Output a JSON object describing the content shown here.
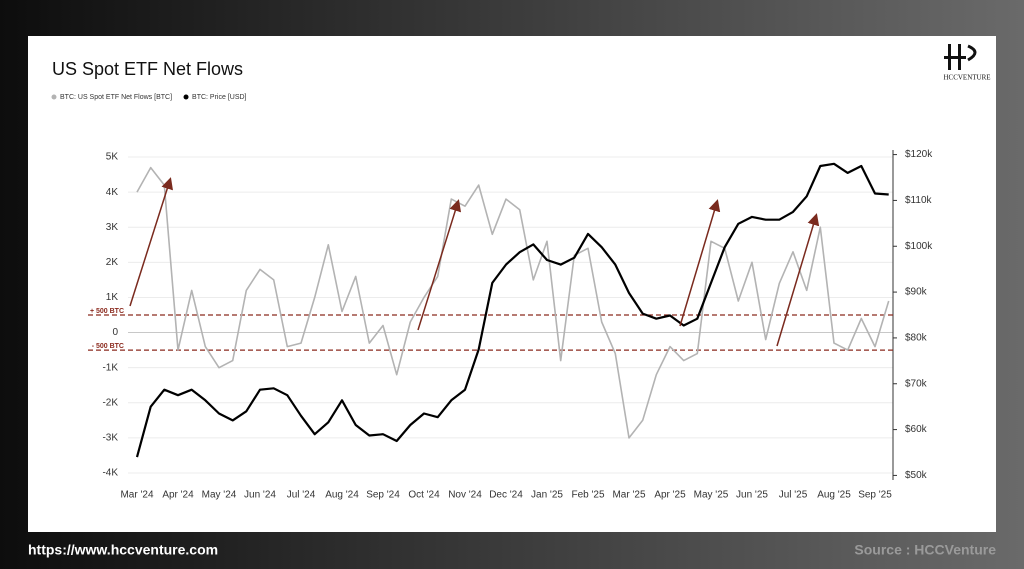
{
  "chart_data": {
    "type": "line",
    "title": "US Spot ETF Net Flows",
    "logo": "HCCVENTURE",
    "footer_left": "https://www.hccventure.com",
    "footer_right": "Source : HCCVenture",
    "categories": [
      "Mar '24",
      null,
      null,
      "Apr '24",
      null,
      null,
      "May '24",
      null,
      null,
      "Jun '24",
      null,
      null,
      "Jul '24",
      null,
      null,
      "Aug '24",
      null,
      null,
      "Sep '24",
      null,
      null,
      "Oct '24",
      null,
      null,
      "Nov '24",
      null,
      null,
      "Dec '24",
      null,
      null,
      "Jan '25",
      null,
      null,
      "Feb '25",
      null,
      null,
      "Mar '25",
      null,
      null,
      "Apr '25",
      null,
      null,
      "May '25",
      null,
      null,
      "Jun '25",
      null,
      null,
      "Jul '25",
      null,
      null,
      "Aug '25",
      null,
      null,
      "Sep '25",
      null
    ],
    "series": [
      {
        "name": "BTC: US Spot ETF Net Flows [BTC]",
        "color": "#b3b3b3",
        "axis": "y",
        "values": [
          4000,
          4700,
          4200,
          -500,
          1200,
          -400,
          -1000,
          -800,
          1200,
          1800,
          1500,
          -400,
          -300,
          1000,
          2500,
          600,
          1600,
          -300,
          200,
          -1200,
          300,
          1000,
          1600,
          3800,
          3600,
          4200,
          2800,
          3800,
          3500,
          1500,
          2600,
          -800,
          2200,
          2400,
          300,
          -600,
          -3000,
          -2500,
          -1200,
          -400,
          -800,
          -600,
          2600,
          2400,
          900,
          2000,
          -200,
          1400,
          2300,
          1200,
          3000,
          -300,
          -500,
          400,
          -400,
          900
        ]
      },
      {
        "name": "BTC: Price [USD]",
        "color": "#000000",
        "axis": "y2",
        "values": [
          54000,
          65000,
          68700,
          67500,
          68700,
          66400,
          63500,
          62000,
          64000,
          68700,
          69000,
          67500,
          63000,
          59000,
          61600,
          66400,
          61000,
          58700,
          59000,
          57500,
          61000,
          63500,
          62700,
          66400,
          68700,
          77500,
          92000,
          96000,
          98700,
          100400,
          97000,
          96000,
          97500,
          102700,
          99800,
          96000,
          89800,
          85300,
          84200,
          84900,
          82700,
          84200,
          92000,
          99800,
          104900,
          106400,
          105800,
          105800,
          107500,
          110900,
          117500,
          118000,
          116000,
          117500,
          111500,
          111300
        ]
      }
    ],
    "ylim": [
      -4200,
      5200
    ],
    "yticks": [
      {
        "value": 5000,
        "label": "5K"
      },
      {
        "value": 4000,
        "label": "4K"
      },
      {
        "value": 3000,
        "label": "3K"
      },
      {
        "value": 2000,
        "label": "2K"
      },
      {
        "value": 1000,
        "label": "1K"
      },
      0,
      {
        "value": -1000,
        "label": "-1K"
      },
      {
        "value": -2000,
        "label": "-2K"
      },
      {
        "value": -3000,
        "label": "-3K"
      },
      {
        "value": -4000,
        "label": "-4K"
      }
    ],
    "y2lim": [
      49000,
      121000
    ],
    "y2ticks": [
      {
        "value": 120000,
        "label": "$120k"
      },
      {
        "value": 110000,
        "label": "$110k"
      },
      {
        "value": 100000,
        "label": "$100k"
      },
      {
        "value": 90000,
        "label": "$90k"
      },
      {
        "value": 80000,
        "label": "$80k"
      },
      {
        "value": 70000,
        "label": "$70k"
      },
      {
        "value": 60000,
        "label": "$60k"
      },
      {
        "value": 50000,
        "label": "$50k"
      }
    ],
    "grid": true,
    "annotations": [
      {
        "text": "+ 500 BTC",
        "value": 500
      },
      {
        "text": "- 500 BTC",
        "value": -500
      }
    ]
  }
}
